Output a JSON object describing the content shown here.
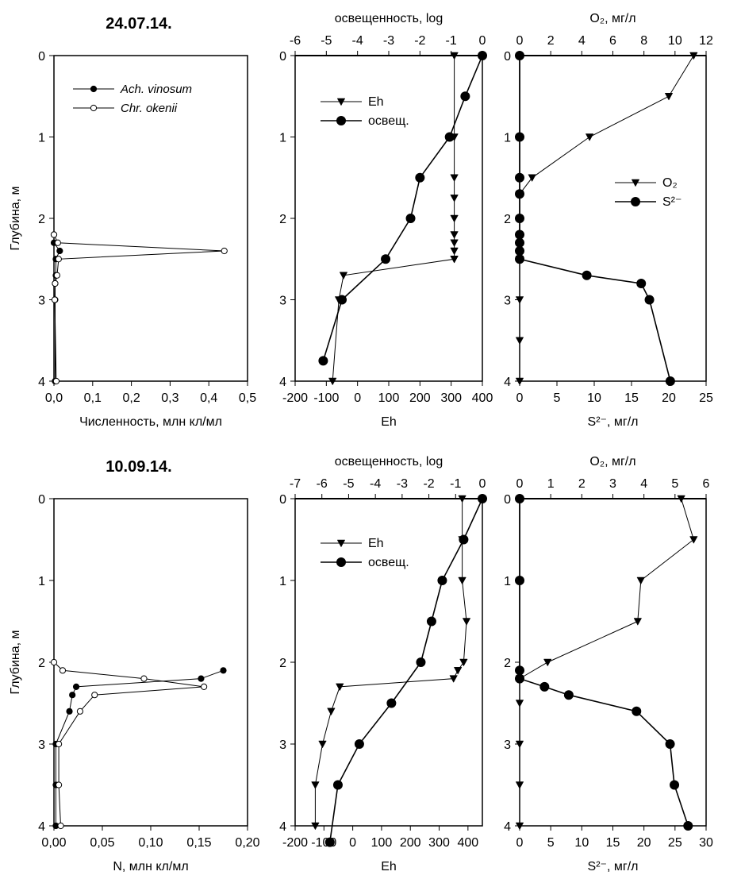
{
  "chart_data": [
    {
      "type": "line",
      "title": "24.07.14.",
      "xlabel": "Численность, млн кл/мл",
      "ylabel": "Глубина, м",
      "xlim": [
        0,
        0.5
      ],
      "ylim": [
        0,
        4
      ],
      "xticks": [
        "0,0",
        "0,1",
        "0,2",
        "0,3",
        "0,4",
        "0,5"
      ],
      "yticks": [
        "0",
        "1",
        "2",
        "3",
        "4"
      ],
      "legend": "top-left",
      "series": [
        {
          "name": "Ach. vinosum",
          "marker": "filled-circle",
          "x": [
            0.0,
            0.0,
            0.015,
            0.005,
            0.005,
            0.003,
            0.003,
            0.003,
            0.003
          ],
          "y": [
            2.2,
            2.3,
            2.4,
            2.5,
            2.7,
            2.8,
            3.0,
            4.0,
            4.0
          ]
        },
        {
          "name": "Chr. okenii",
          "marker": "open-circle",
          "x": [
            0.0,
            0.01,
            0.44,
            0.012,
            0.008,
            0.003,
            0.002,
            0.006
          ],
          "y": [
            2.2,
            2.3,
            2.4,
            2.5,
            2.7,
            2.8,
            3.0,
            4.0
          ]
        }
      ]
    },
    {
      "type": "line",
      "xlabel": "Eh",
      "x2label": "освещенность, log",
      "xlim": [
        -200,
        400
      ],
      "x2lim": [
        -6,
        0
      ],
      "ylim": [
        0,
        4
      ],
      "xticks": [
        "-200",
        "-100",
        "0",
        "100",
        "200",
        "300",
        "400"
      ],
      "x2ticks": [
        "-6",
        "-5",
        "-4",
        "-3",
        "-2",
        "-1",
        "0"
      ],
      "yticks": [
        "0",
        "1",
        "2",
        "3",
        "4"
      ],
      "legend": "top-left",
      "series": [
        {
          "name": "Eh",
          "axis": "bottom",
          "marker": "triangle",
          "x": [
            310,
            310,
            310,
            310,
            310,
            310,
            310,
            310,
            310,
            310,
            -45,
            -60,
            -80
          ],
          "y": [
            0,
            1.0,
            1.5,
            1.75,
            2.0,
            2.2,
            2.3,
            2.4,
            2.5,
            2.5,
            2.7,
            3.0,
            4.0
          ]
        },
        {
          "name": "освещ.",
          "axis": "top",
          "marker": "filled-circle",
          "x": [
            0,
            -0.55,
            -1.05,
            -2.0,
            -2.3,
            -3.1,
            -4.5,
            -5.1
          ],
          "y": [
            0,
            0.5,
            1.0,
            1.5,
            2.0,
            2.5,
            3.0,
            3.75
          ]
        }
      ]
    },
    {
      "type": "line",
      "xlabel": "S²⁻, мг/л",
      "x2label": "O₂, мг/л",
      "xlim": [
        0,
        25
      ],
      "x2lim": [
        0,
        12
      ],
      "ylim": [
        0,
        4
      ],
      "xticks": [
        "0",
        "5",
        "10",
        "15",
        "20",
        "25"
      ],
      "x2ticks": [
        "0",
        "2",
        "4",
        "6",
        "8",
        "10",
        "12"
      ],
      "yticks": [
        "0",
        "1",
        "2",
        "3",
        "4"
      ],
      "legend": "right",
      "series": [
        {
          "name": "O₂",
          "axis": "top",
          "marker": "triangle",
          "x": [
            11.2,
            9.6,
            4.5,
            0.8,
            0,
            0,
            0,
            0,
            0
          ],
          "y": [
            0,
            0.5,
            1.0,
            1.5,
            1.7,
            2.5,
            3.0,
            3.5,
            4.0
          ]
        },
        {
          "name": "S²⁻",
          "axis": "bottom",
          "marker": "filled-circle",
          "x": [
            0,
            0,
            0,
            0,
            0,
            0,
            0,
            0,
            0,
            9.0,
            16.3,
            17.4,
            20.2
          ],
          "y": [
            0,
            1.0,
            1.5,
            1.7,
            2.0,
            2.2,
            2.3,
            2.4,
            2.5,
            2.7,
            2.8,
            3.0,
            4.0
          ]
        }
      ]
    },
    {
      "type": "line",
      "title": "10.09.14.",
      "xlabel": "N, млн кл/мл",
      "ylabel": "Глубина, м",
      "xlim": [
        0,
        0.2
      ],
      "ylim": [
        0,
        4
      ],
      "xticks": [
        "0,00",
        "0,05",
        "0,10",
        "0,15",
        "0,20"
      ],
      "yticks": [
        "0",
        "1",
        "2",
        "3",
        "4"
      ],
      "legend": "none",
      "series": [
        {
          "name": "Ach. vinosum",
          "marker": "filled-circle",
          "x": [
            0.175,
            0.152,
            0.023,
            0.019,
            0.016,
            0.002,
            0.002,
            0.002
          ],
          "y": [
            2.1,
            2.2,
            2.3,
            2.4,
            2.6,
            3.0,
            3.5,
            4.0
          ]
        },
        {
          "name": "Chr. okenii",
          "marker": "open-circle",
          "x": [
            0.0,
            0.009,
            0.093,
            0.155,
            0.042,
            0.027,
            0.005,
            0.005,
            0.007
          ],
          "y": [
            2.0,
            2.1,
            2.2,
            2.3,
            2.4,
            2.6,
            3.0,
            3.5,
            4.0
          ]
        }
      ]
    },
    {
      "type": "line",
      "xlabel": "Eh",
      "x2label": "освещенность, log",
      "xlim": [
        -200,
        450
      ],
      "x2lim": [
        -7,
        0
      ],
      "ylim": [
        0,
        4
      ],
      "xticks": [
        "-200",
        "-100",
        "0",
        "100",
        "200",
        "300",
        "400"
      ],
      "x2ticks": [
        "-7",
        "-6",
        "-5",
        "-4",
        "-3",
        "-2",
        "-1",
        "0"
      ],
      "yticks": [
        "0",
        "1",
        "2",
        "3",
        "4"
      ],
      "legend": "top-left",
      "series": [
        {
          "name": "Eh",
          "axis": "bottom",
          "marker": "triangle",
          "x": [
            380,
            380,
            380,
            395,
            385,
            365,
            350,
            -45,
            -75,
            -105,
            -130,
            -130
          ],
          "y": [
            0,
            0.5,
            1.0,
            1.5,
            2.0,
            2.1,
            2.2,
            2.3,
            2.6,
            3.0,
            3.5,
            4.0
          ]
        },
        {
          "name": "освещ.",
          "axis": "top",
          "marker": "filled-circle",
          "x": [
            0,
            -0.7,
            -1.5,
            -1.9,
            -2.3,
            -3.4,
            -4.6,
            -5.4,
            -5.7
          ],
          "y": [
            0,
            0.5,
            1.0,
            1.5,
            2.0,
            2.5,
            3.0,
            3.5,
            4.2
          ]
        }
      ]
    },
    {
      "type": "line",
      "xlabel": "S²⁻, мг/л",
      "x2label": "O₂, мг/л",
      "xlim": [
        0,
        30
      ],
      "x2lim": [
        0,
        6
      ],
      "ylim": [
        0,
        4
      ],
      "xticks": [
        "0",
        "5",
        "10",
        "15",
        "20",
        "25",
        "30"
      ],
      "x2ticks": [
        "0",
        "1",
        "2",
        "3",
        "4",
        "5",
        "6"
      ],
      "yticks": [
        "0",
        "1",
        "2",
        "3",
        "4"
      ],
      "legend": "none",
      "series": [
        {
          "name": "O₂",
          "axis": "top",
          "marker": "triangle",
          "x": [
            5.2,
            5.6,
            3.9,
            3.8,
            0.9,
            0,
            0,
            0,
            0,
            0
          ],
          "y": [
            0,
            0.5,
            1.0,
            1.5,
            2.0,
            2.2,
            2.5,
            3.0,
            3.5,
            4.0
          ]
        },
        {
          "name": "S²⁻",
          "axis": "bottom",
          "marker": "filled-circle",
          "x": [
            0,
            0,
            0,
            0,
            4.0,
            7.9,
            18.8,
            24.2,
            24.9,
            27.1
          ],
          "y": [
            0,
            1.0,
            2.1,
            2.2,
            2.3,
            2.4,
            2.6,
            3.0,
            3.5,
            4.0
          ]
        }
      ]
    }
  ]
}
